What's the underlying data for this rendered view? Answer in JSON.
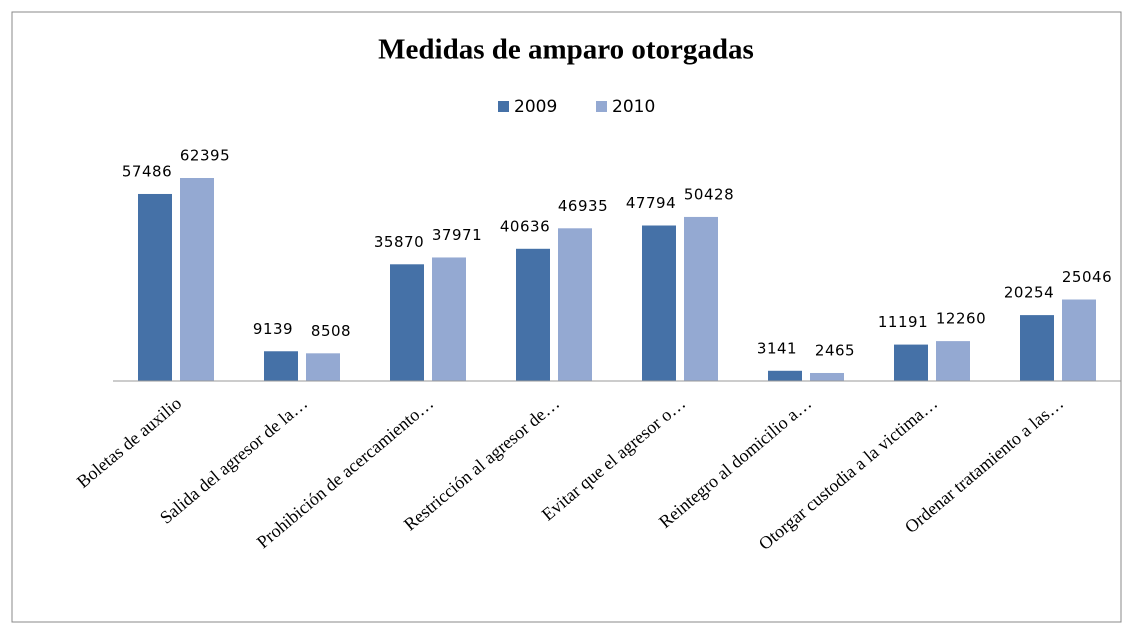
{
  "chart_data": {
    "type": "bar",
    "title": "Medidas de amparo otorgadas",
    "categories": [
      "Boletas de auxilio",
      "Salida del agresor de la…",
      "Prohibición de acercamiento…",
      "Restricción al agresor de…",
      "Evitar que el agresor o…",
      "Reintegro al domicilio a…",
      "Otorgar custodia a la victima…",
      "Ordenar tratamiento a las…"
    ],
    "series": [
      {
        "name": "2009",
        "color": "#4571a7",
        "values": [
          57486,
          9139,
          35870,
          40636,
          47794,
          3141,
          11191,
          20254
        ]
      },
      {
        "name": "2010",
        "color": "#94a9d2",
        "values": [
          62395,
          8508,
          37971,
          46935,
          50428,
          2465,
          12260,
          25046
        ]
      }
    ],
    "legend": "top"
  }
}
